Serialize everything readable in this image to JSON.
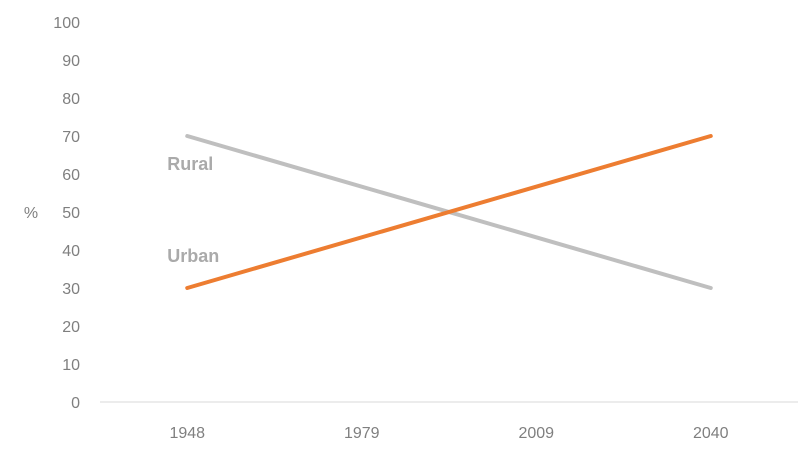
{
  "chart_data": {
    "type": "line",
    "title": "",
    "xlabel": "",
    "ylabel": "%",
    "categories": [
      "1948",
      "1979",
      "2009",
      "2040"
    ],
    "ylim": [
      0,
      100
    ],
    "yticks": [
      0,
      10,
      20,
      30,
      40,
      50,
      60,
      70,
      80,
      90,
      100
    ],
    "grid": false,
    "legend": "none",
    "series": [
      {
        "name": "Rural",
        "values": [
          70,
          null,
          null,
          30
        ],
        "color": "#bfbfbf"
      },
      {
        "name": "Urban",
        "values": [
          30,
          null,
          null,
          70
        ],
        "color": "#ed7d31"
      }
    ]
  }
}
